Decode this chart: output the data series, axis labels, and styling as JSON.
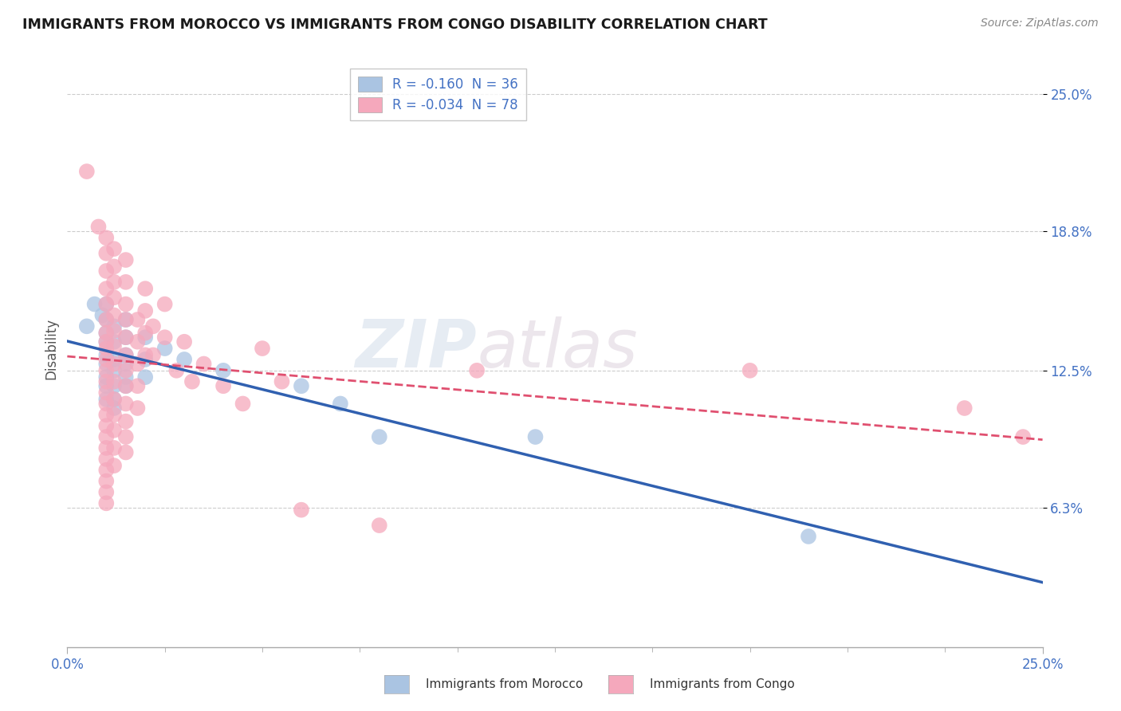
{
  "title": "IMMIGRANTS FROM MOROCCO VS IMMIGRANTS FROM CONGO DISABILITY CORRELATION CHART",
  "source": "Source: ZipAtlas.com",
  "ylabel": "Disability",
  "xlim": [
    0.0,
    0.25
  ],
  "ylim": [
    0.0,
    0.25
  ],
  "xtick_labels": [
    "0.0%",
    "25.0%"
  ],
  "xtick_positions": [
    0.0,
    0.25
  ],
  "ytick_labels": [
    "6.3%",
    "12.5%",
    "18.8%",
    "25.0%"
  ],
  "ytick_positions": [
    0.063,
    0.125,
    0.188,
    0.25
  ],
  "morocco_color": "#aac4e2",
  "congo_color": "#f5a8bc",
  "morocco_R": -0.16,
  "morocco_N": 36,
  "congo_R": -0.034,
  "congo_N": 78,
  "legend_label_color": "#4472c4",
  "watermark": "ZIPatlas",
  "background_color": "#ffffff",
  "grid_color": "#cccccc",
  "morocco_line_color": "#3060b0",
  "congo_line_color": "#e05070",
  "morocco_scatter": [
    [
      0.005,
      0.145
    ],
    [
      0.007,
      0.155
    ],
    [
      0.009,
      0.15
    ],
    [
      0.01,
      0.155
    ],
    [
      0.01,
      0.148
    ],
    [
      0.01,
      0.142
    ],
    [
      0.01,
      0.138
    ],
    [
      0.01,
      0.132
    ],
    [
      0.01,
      0.128
    ],
    [
      0.01,
      0.122
    ],
    [
      0.01,
      0.118
    ],
    [
      0.01,
      0.112
    ],
    [
      0.012,
      0.145
    ],
    [
      0.012,
      0.138
    ],
    [
      0.012,
      0.13
    ],
    [
      0.012,
      0.125
    ],
    [
      0.012,
      0.118
    ],
    [
      0.012,
      0.112
    ],
    [
      0.012,
      0.108
    ],
    [
      0.015,
      0.148
    ],
    [
      0.015,
      0.14
    ],
    [
      0.015,
      0.132
    ],
    [
      0.015,
      0.128
    ],
    [
      0.015,
      0.122
    ],
    [
      0.015,
      0.118
    ],
    [
      0.02,
      0.14
    ],
    [
      0.02,
      0.13
    ],
    [
      0.02,
      0.122
    ],
    [
      0.025,
      0.135
    ],
    [
      0.03,
      0.13
    ],
    [
      0.04,
      0.125
    ],
    [
      0.06,
      0.118
    ],
    [
      0.07,
      0.11
    ],
    [
      0.08,
      0.095
    ],
    [
      0.12,
      0.095
    ],
    [
      0.19,
      0.05
    ]
  ],
  "congo_scatter": [
    [
      0.005,
      0.215
    ],
    [
      0.008,
      0.19
    ],
    [
      0.01,
      0.185
    ],
    [
      0.01,
      0.178
    ],
    [
      0.01,
      0.17
    ],
    [
      0.01,
      0.162
    ],
    [
      0.01,
      0.155
    ],
    [
      0.01,
      0.148
    ],
    [
      0.01,
      0.142
    ],
    [
      0.01,
      0.138
    ],
    [
      0.01,
      0.135
    ],
    [
      0.01,
      0.13
    ],
    [
      0.01,
      0.125
    ],
    [
      0.01,
      0.12
    ],
    [
      0.01,
      0.115
    ],
    [
      0.01,
      0.11
    ],
    [
      0.01,
      0.105
    ],
    [
      0.01,
      0.1
    ],
    [
      0.01,
      0.095
    ],
    [
      0.01,
      0.09
    ],
    [
      0.01,
      0.085
    ],
    [
      0.01,
      0.08
    ],
    [
      0.01,
      0.075
    ],
    [
      0.01,
      0.07
    ],
    [
      0.01,
      0.065
    ],
    [
      0.012,
      0.18
    ],
    [
      0.012,
      0.172
    ],
    [
      0.012,
      0.165
    ],
    [
      0.012,
      0.158
    ],
    [
      0.012,
      0.15
    ],
    [
      0.012,
      0.143
    ],
    [
      0.012,
      0.136
    ],
    [
      0.012,
      0.128
    ],
    [
      0.012,
      0.12
    ],
    [
      0.012,
      0.112
    ],
    [
      0.012,
      0.105
    ],
    [
      0.012,
      0.098
    ],
    [
      0.012,
      0.09
    ],
    [
      0.012,
      0.082
    ],
    [
      0.015,
      0.175
    ],
    [
      0.015,
      0.165
    ],
    [
      0.015,
      0.155
    ],
    [
      0.015,
      0.148
    ],
    [
      0.015,
      0.14
    ],
    [
      0.015,
      0.132
    ],
    [
      0.015,
      0.125
    ],
    [
      0.015,
      0.118
    ],
    [
      0.015,
      0.11
    ],
    [
      0.015,
      0.102
    ],
    [
      0.015,
      0.095
    ],
    [
      0.015,
      0.088
    ],
    [
      0.018,
      0.148
    ],
    [
      0.018,
      0.138
    ],
    [
      0.018,
      0.128
    ],
    [
      0.018,
      0.118
    ],
    [
      0.018,
      0.108
    ],
    [
      0.02,
      0.162
    ],
    [
      0.02,
      0.152
    ],
    [
      0.02,
      0.142
    ],
    [
      0.02,
      0.132
    ],
    [
      0.022,
      0.145
    ],
    [
      0.022,
      0.132
    ],
    [
      0.025,
      0.155
    ],
    [
      0.025,
      0.14
    ],
    [
      0.028,
      0.125
    ],
    [
      0.03,
      0.138
    ],
    [
      0.032,
      0.12
    ],
    [
      0.035,
      0.128
    ],
    [
      0.04,
      0.118
    ],
    [
      0.045,
      0.11
    ],
    [
      0.05,
      0.135
    ],
    [
      0.055,
      0.12
    ],
    [
      0.06,
      0.062
    ],
    [
      0.08,
      0.055
    ],
    [
      0.105,
      0.125
    ],
    [
      0.175,
      0.125
    ],
    [
      0.23,
      0.108
    ],
    [
      0.245,
      0.095
    ]
  ]
}
